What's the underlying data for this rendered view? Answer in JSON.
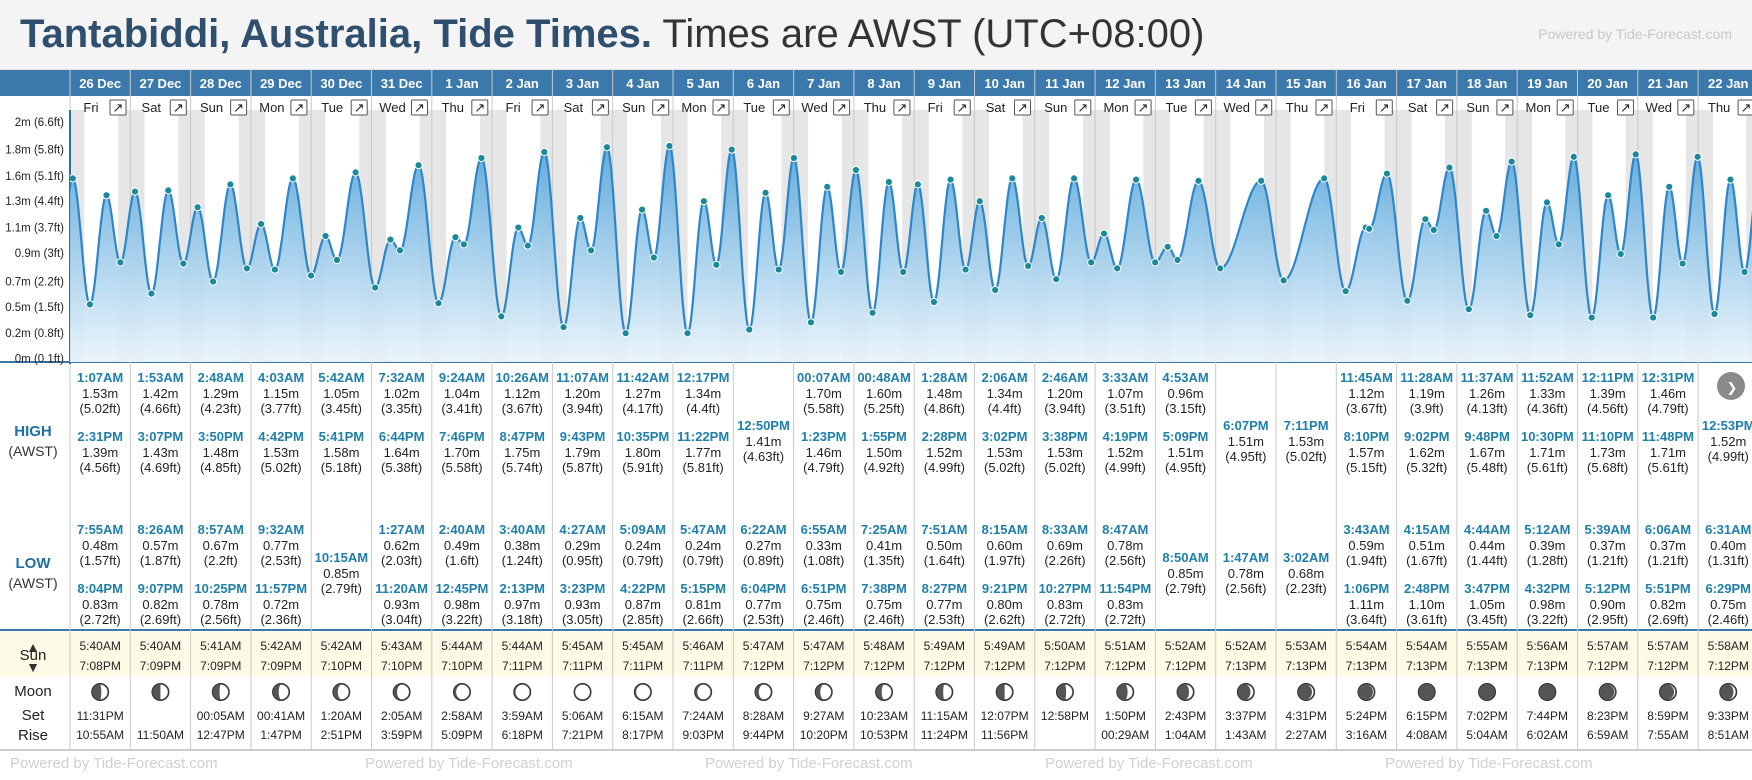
{
  "header": {
    "location_title": "Tantabiddi, Australia, Tide Times.",
    "timezone_text": "Times are AWST (UTC+08:00)",
    "powered_by": "Powered by Tide-Forecast.com"
  },
  "row_labels": {
    "high": "HIGH",
    "high_tz": "(AWST)",
    "low": "LOW",
    "low_tz": "(AWST)",
    "sun": "Sun",
    "moon": "Moon",
    "set": "Set",
    "rise": "Rise"
  },
  "colors": {
    "date_bar": "#3b79ad",
    "tide_line": "#2f86c7",
    "tide_fill": "#5aa8dc",
    "marker": "#1a8a9b",
    "high_time": "#1f7fa8",
    "sun_bg": "#fdfbe6"
  },
  "chart_data": {
    "type": "area",
    "title": "Tantabiddi, Australia, Tide Times.",
    "ylabel": "",
    "ylim": [
      0,
      2.0
    ],
    "y_ticks": [
      "0m (0.1ft)",
      "0.2m (0.8ft)",
      "0.5m (1.5ft)",
      "0.7m (2.2ft)",
      "0.9m (3ft)",
      "1.1m (3.7ft)",
      "1.3m (4.4ft)",
      "1.6m (5.1ft)",
      "1.8m (5.8ft)",
      "2m (6.6ft)"
    ],
    "y_tick_values": [
      0.03,
      0.24,
      0.46,
      0.67,
      0.91,
      1.12,
      1.34,
      1.55,
      1.77,
      2.0
    ],
    "grid": false,
    "days": [
      {
        "date": "26 Dec",
        "dow": "Fri",
        "highs": [
          {
            "t": "1:07AM",
            "m": "1.53m",
            "ft": "(5.02ft)"
          },
          {
            "t": "2:31PM",
            "m": "1.39m",
            "ft": "(4.56ft)"
          }
        ],
        "lows": [
          {
            "t": "7:55AM",
            "m": "0.48m",
            "ft": "(1.57ft)"
          },
          {
            "t": "8:04PM",
            "m": "0.83m",
            "ft": "(2.72ft)"
          }
        ],
        "sunrise": "5:40AM",
        "sunset": "7:08PM",
        "moon": 0.42,
        "moon_set": "11:31PM",
        "moon_rise": "10:55AM"
      },
      {
        "date": "27 Dec",
        "dow": "Sat",
        "highs": [
          {
            "t": "1:53AM",
            "m": "1.42m",
            "ft": "(4.66ft)"
          },
          {
            "t": "3:07PM",
            "m": "1.43m",
            "ft": "(4.69ft)"
          }
        ],
        "lows": [
          {
            "t": "8:26AM",
            "m": "0.57m",
            "ft": "(1.87ft)"
          },
          {
            "t": "9:07PM",
            "m": "0.82m",
            "ft": "(2.69ft)"
          }
        ],
        "sunrise": "5:40AM",
        "sunset": "7:09PM",
        "moon": 0.5,
        "moon_set": "",
        "moon_rise": "11:50AM"
      },
      {
        "date": "28 Dec",
        "dow": "Sun",
        "highs": [
          {
            "t": "2:48AM",
            "m": "1.29m",
            "ft": "(4.23ft)"
          },
          {
            "t": "3:50PM",
            "m": "1.48m",
            "ft": "(4.85ft)"
          }
        ],
        "lows": [
          {
            "t": "8:57AM",
            "m": "0.67m",
            "ft": "(2.2ft)"
          },
          {
            "t": "10:25PM",
            "m": "0.78m",
            "ft": "(2.56ft)"
          }
        ],
        "sunrise": "5:41AM",
        "sunset": "7:09PM",
        "moon": 0.58,
        "moon_set": "00:05AM",
        "moon_rise": "12:47PM"
      },
      {
        "date": "29 Dec",
        "dow": "Mon",
        "highs": [
          {
            "t": "4:03AM",
            "m": "1.15m",
            "ft": "(3.77ft)"
          },
          {
            "t": "4:42PM",
            "m": "1.53m",
            "ft": "(5.02ft)"
          }
        ],
        "lows": [
          {
            "t": "9:32AM",
            "m": "0.77m",
            "ft": "(2.53ft)"
          },
          {
            "t": "11:57PM",
            "m": "0.72m",
            "ft": "(2.36ft)"
          }
        ],
        "sunrise": "5:42AM",
        "sunset": "7:09PM",
        "moon": 0.66,
        "moon_set": "00:41AM",
        "moon_rise": "1:47PM"
      },
      {
        "date": "30 Dec",
        "dow": "Tue",
        "highs": [
          {
            "t": "5:42AM",
            "m": "1.05m",
            "ft": "(3.45ft)"
          },
          {
            "t": "5:41PM",
            "m": "1.58m",
            "ft": "(5.18ft)"
          }
        ],
        "lows": [
          {
            "t": "10:15AM",
            "m": "0.85m",
            "ft": "(2.79ft)"
          }
        ],
        "sunrise": "5:42AM",
        "sunset": "7:10PM",
        "moon": 0.74,
        "moon_set": "1:20AM",
        "moon_rise": "2:51PM"
      },
      {
        "date": "31 Dec",
        "dow": "Wed",
        "highs": [
          {
            "t": "7:32AM",
            "m": "1.02m",
            "ft": "(3.35ft)"
          },
          {
            "t": "6:44PM",
            "m": "1.64m",
            "ft": "(5.38ft)"
          }
        ],
        "lows": [
          {
            "t": "1:27AM",
            "m": "0.62m",
            "ft": "(2.03ft)"
          },
          {
            "t": "11:20AM",
            "m": "0.93m",
            "ft": "(3.04ft)"
          }
        ],
        "sunrise": "5:43AM",
        "sunset": "7:10PM",
        "moon": 0.82,
        "moon_set": "2:05AM",
        "moon_rise": "3:59PM"
      },
      {
        "date": "1 Jan",
        "dow": "Thu",
        "highs": [
          {
            "t": "9:24AM",
            "m": "1.04m",
            "ft": "(3.41ft)"
          },
          {
            "t": "7:46PM",
            "m": "1.70m",
            "ft": "(5.58ft)"
          }
        ],
        "lows": [
          {
            "t": "2:40AM",
            "m": "0.49m",
            "ft": "(1.6ft)"
          },
          {
            "t": "12:45PM",
            "m": "0.98m",
            "ft": "(3.22ft)"
          }
        ],
        "sunrise": "5:44AM",
        "sunset": "7:10PM",
        "moon": 0.9,
        "moon_set": "2:58AM",
        "moon_rise": "5:09PM"
      },
      {
        "date": "2 Jan",
        "dow": "Fri",
        "highs": [
          {
            "t": "10:26AM",
            "m": "1.12m",
            "ft": "(3.67ft)"
          },
          {
            "t": "8:47PM",
            "m": "1.75m",
            "ft": "(5.74ft)"
          }
        ],
        "lows": [
          {
            "t": "3:40AM",
            "m": "0.38m",
            "ft": "(1.24ft)"
          },
          {
            "t": "2:13PM",
            "m": "0.97m",
            "ft": "(3.18ft)"
          }
        ],
        "sunrise": "5:44AM",
        "sunset": "7:11PM",
        "moon": 0.96,
        "moon_set": "3:59AM",
        "moon_rise": "6:18PM"
      },
      {
        "date": "3 Jan",
        "dow": "Sat",
        "highs": [
          {
            "t": "11:07AM",
            "m": "1.20m",
            "ft": "(3.94ft)"
          },
          {
            "t": "9:43PM",
            "m": "1.79m",
            "ft": "(5.87ft)"
          }
        ],
        "lows": [
          {
            "t": "4:27AM",
            "m": "0.29m",
            "ft": "(0.95ft)"
          },
          {
            "t": "3:23PM",
            "m": "0.93m",
            "ft": "(3.05ft)"
          }
        ],
        "sunrise": "5:45AM",
        "sunset": "7:11PM",
        "moon": 1.0,
        "moon_set": "5:06AM",
        "moon_rise": "7:21PM"
      },
      {
        "date": "4 Jan",
        "dow": "Sun",
        "highs": [
          {
            "t": "11:42AM",
            "m": "1.27m",
            "ft": "(4.17ft)"
          },
          {
            "t": "10:35PM",
            "m": "1.80m",
            "ft": "(5.91ft)"
          }
        ],
        "lows": [
          {
            "t": "5:09AM",
            "m": "0.24m",
            "ft": "(0.79ft)"
          },
          {
            "t": "4:22PM",
            "m": "0.87m",
            "ft": "(2.85ft)"
          }
        ],
        "sunrise": "5:45AM",
        "sunset": "7:11PM",
        "moon": 0.96,
        "moon_set": "6:15AM",
        "moon_rise": "8:17PM"
      },
      {
        "date": "5 Jan",
        "dow": "Mon",
        "highs": [
          {
            "t": "12:17PM",
            "m": "1.34m",
            "ft": "(4.4ft)"
          },
          {
            "t": "11:22PM",
            "m": "1.77m",
            "ft": "(5.81ft)"
          }
        ],
        "lows": [
          {
            "t": "5:47AM",
            "m": "0.24m",
            "ft": "(0.79ft)"
          },
          {
            "t": "5:15PM",
            "m": "0.81m",
            "ft": "(2.66ft)"
          }
        ],
        "sunrise": "5:46AM",
        "sunset": "7:11PM",
        "moon": 0.9,
        "moon_set": "7:24AM",
        "moon_rise": "9:03PM"
      },
      {
        "date": "6 Jan",
        "dow": "Tue",
        "highs": [
          {
            "t": "12:50PM",
            "m": "1.41m",
            "ft": "(4.63ft)"
          }
        ],
        "lows": [
          {
            "t": "6:22AM",
            "m": "0.27m",
            "ft": "(0.89ft)"
          },
          {
            "t": "6:04PM",
            "m": "0.77m",
            "ft": "(2.53ft)"
          }
        ],
        "sunrise": "5:47AM",
        "sunset": "7:12PM",
        "moon": 0.82,
        "moon_set": "8:28AM",
        "moon_rise": "9:44PM"
      },
      {
        "date": "7 Jan",
        "dow": "Wed",
        "highs": [
          {
            "t": "00:07AM",
            "m": "1.70m",
            "ft": "(5.58ft)"
          },
          {
            "t": "1:23PM",
            "m": "1.46m",
            "ft": "(4.79ft)"
          }
        ],
        "lows": [
          {
            "t": "6:55AM",
            "m": "0.33m",
            "ft": "(1.08ft)"
          },
          {
            "t": "6:51PM",
            "m": "0.75m",
            "ft": "(2.46ft)"
          }
        ],
        "sunrise": "5:47AM",
        "sunset": "7:12PM",
        "moon": 0.74,
        "moon_set": "9:27AM",
        "moon_rise": "10:20PM"
      },
      {
        "date": "8 Jan",
        "dow": "Thu",
        "highs": [
          {
            "t": "00:48AM",
            "m": "1.60m",
            "ft": "(5.25ft)"
          },
          {
            "t": "1:55PM",
            "m": "1.50m",
            "ft": "(4.92ft)"
          }
        ],
        "lows": [
          {
            "t": "7:25AM",
            "m": "0.41m",
            "ft": "(1.35ft)"
          },
          {
            "t": "7:38PM",
            "m": "0.75m",
            "ft": "(2.46ft)"
          }
        ],
        "sunrise": "5:48AM",
        "sunset": "7:12PM",
        "moon": 0.66,
        "moon_set": "10:23AM",
        "moon_rise": "10:53PM"
      },
      {
        "date": "9 Jan",
        "dow": "Fri",
        "highs": [
          {
            "t": "1:28AM",
            "m": "1.48m",
            "ft": "(4.86ft)"
          },
          {
            "t": "2:28PM",
            "m": "1.52m",
            "ft": "(4.99ft)"
          }
        ],
        "lows": [
          {
            "t": "7:51AM",
            "m": "0.50m",
            "ft": "(1.64ft)"
          },
          {
            "t": "8:27PM",
            "m": "0.77m",
            "ft": "(2.53ft)"
          }
        ],
        "sunrise": "5:49AM",
        "sunset": "7:12PM",
        "moon": 0.58,
        "moon_set": "11:15AM",
        "moon_rise": "11:24PM"
      },
      {
        "date": "10 Jan",
        "dow": "Sat",
        "highs": [
          {
            "t": "2:06AM",
            "m": "1.34m",
            "ft": "(4.4ft)"
          },
          {
            "t": "3:02PM",
            "m": "1.53m",
            "ft": "(5.02ft)"
          }
        ],
        "lows": [
          {
            "t": "8:15AM",
            "m": "0.60m",
            "ft": "(1.97ft)"
          },
          {
            "t": "9:21PM",
            "m": "0.80m",
            "ft": "(2.62ft)"
          }
        ],
        "sunrise": "5:49AM",
        "sunset": "7:12PM",
        "moon": 0.5,
        "moon_set": "12:07PM",
        "moon_rise": "11:56PM"
      },
      {
        "date": "11 Jan",
        "dow": "Sun",
        "highs": [
          {
            "t": "2:46AM",
            "m": "1.20m",
            "ft": "(3.94ft)"
          },
          {
            "t": "3:38PM",
            "m": "1.53m",
            "ft": "(5.02ft)"
          }
        ],
        "lows": [
          {
            "t": "8:33AM",
            "m": "0.69m",
            "ft": "(2.26ft)"
          },
          {
            "t": "10:27PM",
            "m": "0.83m",
            "ft": "(2.72ft)"
          }
        ],
        "sunrise": "5:50AM",
        "sunset": "7:12PM",
        "moon": 0.42,
        "moon_set": "12:58PM",
        "moon_rise": ""
      },
      {
        "date": "12 Jan",
        "dow": "Mon",
        "highs": [
          {
            "t": "3:33AM",
            "m": "1.07m",
            "ft": "(3.51ft)"
          },
          {
            "t": "4:19PM",
            "m": "1.52m",
            "ft": "(4.99ft)"
          }
        ],
        "lows": [
          {
            "t": "8:47AM",
            "m": "0.78m",
            "ft": "(2.56ft)"
          },
          {
            "t": "11:54PM",
            "m": "0.83m",
            "ft": "(2.72ft)"
          }
        ],
        "sunrise": "5:51AM",
        "sunset": "7:12PM",
        "moon": 0.34,
        "moon_set": "1:50PM",
        "moon_rise": "00:29AM"
      },
      {
        "date": "13 Jan",
        "dow": "Tue",
        "highs": [
          {
            "t": "4:53AM",
            "m": "0.96m",
            "ft": "(3.15ft)"
          },
          {
            "t": "5:09PM",
            "m": "1.51m",
            "ft": "(4.95ft)"
          }
        ],
        "lows": [
          {
            "t": "8:50AM",
            "m": "0.85m",
            "ft": "(2.79ft)"
          }
        ],
        "sunrise": "5:52AM",
        "sunset": "7:12PM",
        "moon": 0.26,
        "moon_set": "2:43PM",
        "moon_rise": "1:04AM"
      },
      {
        "date": "14 Jan",
        "dow": "Wed",
        "highs": [
          {
            "t": "6:07PM",
            "m": "1.51m",
            "ft": "(4.95ft)"
          }
        ],
        "lows": [
          {
            "t": "1:47AM",
            "m": "0.78m",
            "ft": "(2.56ft)"
          }
        ],
        "sunrise": "5:52AM",
        "sunset": "7:13PM",
        "moon": 0.18,
        "moon_set": "3:37PM",
        "moon_rise": "1:43AM"
      },
      {
        "date": "15 Jan",
        "dow": "Thu",
        "highs": [
          {
            "t": "7:11PM",
            "m": "1.53m",
            "ft": "(5.02ft)"
          }
        ],
        "lows": [
          {
            "t": "3:02AM",
            "m": "0.68m",
            "ft": "(2.23ft)"
          }
        ],
        "sunrise": "5:53AM",
        "sunset": "7:13PM",
        "moon": 0.1,
        "moon_set": "4:31PM",
        "moon_rise": "2:27AM"
      },
      {
        "date": "16 Jan",
        "dow": "Fri",
        "highs": [
          {
            "t": "11:45AM",
            "m": "1.12m",
            "ft": "(3.67ft)"
          },
          {
            "t": "8:10PM",
            "m": "1.57m",
            "ft": "(5.15ft)"
          }
        ],
        "lows": [
          {
            "t": "3:43AM",
            "m": "0.59m",
            "ft": "(1.94ft)"
          },
          {
            "t": "1:06PM",
            "m": "1.11m",
            "ft": "(3.64ft)"
          }
        ],
        "sunrise": "5:54AM",
        "sunset": "7:13PM",
        "moon": 0.05,
        "moon_set": "5:24PM",
        "moon_rise": "3:16AM"
      },
      {
        "date": "17 Jan",
        "dow": "Sat",
        "highs": [
          {
            "t": "11:28AM",
            "m": "1.19m",
            "ft": "(3.9ft)"
          },
          {
            "t": "9:02PM",
            "m": "1.62m",
            "ft": "(5.32ft)"
          }
        ],
        "lows": [
          {
            "t": "4:15AM",
            "m": "0.51m",
            "ft": "(1.67ft)"
          },
          {
            "t": "2:48PM",
            "m": "1.10m",
            "ft": "(3.61ft)"
          }
        ],
        "sunrise": "5:54AM",
        "sunset": "7:13PM",
        "moon": 0.02,
        "moon_set": "6:15PM",
        "moon_rise": "4:08AM"
      },
      {
        "date": "18 Jan",
        "dow": "Sun",
        "highs": [
          {
            "t": "11:37AM",
            "m": "1.26m",
            "ft": "(4.13ft)"
          },
          {
            "t": "9:48PM",
            "m": "1.67m",
            "ft": "(5.48ft)"
          }
        ],
        "lows": [
          {
            "t": "4:44AM",
            "m": "0.44m",
            "ft": "(1.44ft)"
          },
          {
            "t": "3:47PM",
            "m": "1.05m",
            "ft": "(3.45ft)"
          }
        ],
        "sunrise": "5:55AM",
        "sunset": "7:13PM",
        "moon": 0.01,
        "moon_set": "7:02PM",
        "moon_rise": "5:04AM"
      },
      {
        "date": "19 Jan",
        "dow": "Mon",
        "highs": [
          {
            "t": "11:52AM",
            "m": "1.33m",
            "ft": "(4.36ft)"
          },
          {
            "t": "10:30PM",
            "m": "1.71m",
            "ft": "(5.61ft)"
          }
        ],
        "lows": [
          {
            "t": "5:12AM",
            "m": "0.39m",
            "ft": "(1.28ft)"
          },
          {
            "t": "4:32PM",
            "m": "0.98m",
            "ft": "(3.22ft)"
          }
        ],
        "sunrise": "5:56AM",
        "sunset": "7:13PM",
        "moon": 0.02,
        "moon_set": "7:44PM",
        "moon_rise": "6:02AM"
      },
      {
        "date": "20 Jan",
        "dow": "Tue",
        "highs": [
          {
            "t": "12:11PM",
            "m": "1.39m",
            "ft": "(4.56ft)"
          },
          {
            "t": "11:10PM",
            "m": "1.73m",
            "ft": "(5.68ft)"
          }
        ],
        "lows": [
          {
            "t": "5:39AM",
            "m": "0.37m",
            "ft": "(1.21ft)"
          },
          {
            "t": "5:12PM",
            "m": "0.90m",
            "ft": "(2.95ft)"
          }
        ],
        "sunrise": "5:57AM",
        "sunset": "7:12PM",
        "moon": 0.04,
        "moon_set": "8:23PM",
        "moon_rise": "6:59AM"
      },
      {
        "date": "21 Jan",
        "dow": "Wed",
        "highs": [
          {
            "t": "12:31PM",
            "m": "1.46m",
            "ft": "(4.79ft)"
          },
          {
            "t": "11:48PM",
            "m": "1.71m",
            "ft": "(5.61ft)"
          }
        ],
        "lows": [
          {
            "t": "6:06AM",
            "m": "0.37m",
            "ft": "(1.21ft)"
          },
          {
            "t": "5:51PM",
            "m": "0.82m",
            "ft": "(2.69ft)"
          }
        ],
        "sunrise": "5:57AM",
        "sunset": "7:12PM",
        "moon": 0.08,
        "moon_set": "8:59PM",
        "moon_rise": "7:55AM"
      },
      {
        "date": "22 Jan",
        "dow": "Thu",
        "highs": [
          {
            "t": "12:53PM",
            "m": "1.52m",
            "ft": "(4.99ft)"
          }
        ],
        "lows": [
          {
            "t": "6:31AM",
            "m": "0.40m",
            "ft": "(1.31ft)"
          },
          {
            "t": "6:29PM",
            "m": "0.75m",
            "ft": "(2.46ft)"
          }
        ],
        "sunrise": "5:58AM",
        "sunset": "7:12PM",
        "moon": 0.14,
        "moon_set": "9:33PM",
        "moon_rise": "8:51AM"
      }
    ]
  }
}
